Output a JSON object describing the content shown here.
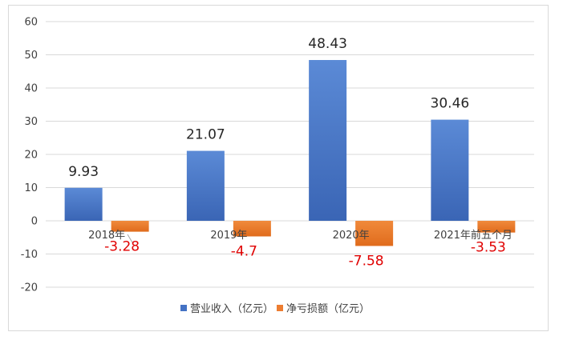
{
  "chart_data": {
    "type": "bar",
    "categories": [
      "2018年",
      "2019年",
      "2020年",
      "2021年前五个月"
    ],
    "series": [
      {
        "name": "营业收入（亿元）",
        "values": [
          9.93,
          21.07,
          48.43,
          30.46
        ],
        "color": "#4472c4",
        "labels": [
          "9.93",
          "21.07",
          "48.43",
          "30.46"
        ]
      },
      {
        "name": "净亏损额（亿元）",
        "values": [
          -3.28,
          -4.7,
          -7.58,
          -3.53
        ],
        "color": "#ed7d31",
        "labels": [
          "-3.28",
          "-4.7",
          "-7.58",
          "-3.53"
        ]
      }
    ],
    "ylim": [
      -20,
      60
    ],
    "yticks": [
      "60",
      "50",
      "40",
      "30",
      "20",
      "10",
      "0",
      "-10",
      "-20"
    ],
    "grid": true,
    "legend": "bottom",
    "negative_label_color": "#e00000"
  }
}
